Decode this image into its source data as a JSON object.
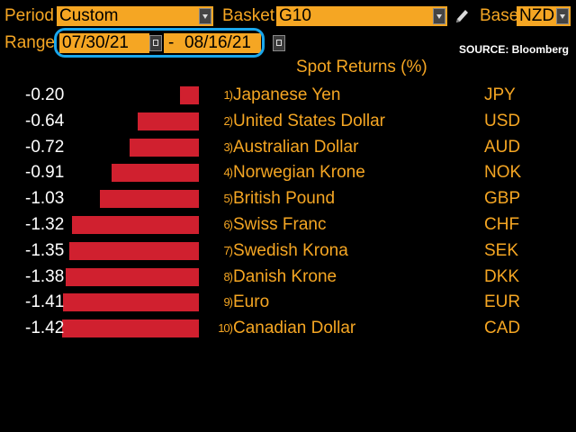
{
  "header": {
    "period_label": "Period",
    "period_value": "Custom",
    "basket_label": "Basket",
    "basket_value": "G10",
    "base_label": "Base",
    "base_value": "NZD",
    "range_label": "Range",
    "range_start": "07/30/21",
    "range_sep": "-",
    "range_end": "08/16/21",
    "source": "SOURCE: Bloomberg"
  },
  "colors": {
    "accent": "#f5a623",
    "bar": "#d0202f",
    "highlight": "#1aa7ec",
    "background": "#000000"
  },
  "chart_data": {
    "type": "bar",
    "orientation": "horizontal",
    "title": "Spot Returns (%)",
    "rows": [
      {
        "rank": "1)",
        "name": "Japanese Yen",
        "code": "JPY",
        "value": -0.2,
        "label": "-0.20"
      },
      {
        "rank": "2)",
        "name": "United States Dollar",
        "code": "USD",
        "value": -0.64,
        "label": "-0.64"
      },
      {
        "rank": "3)",
        "name": "Australian Dollar",
        "code": "AUD",
        "value": -0.72,
        "label": "-0.72"
      },
      {
        "rank": "4)",
        "name": "Norwegian Krone",
        "code": "NOK",
        "value": -0.91,
        "label": "-0.91"
      },
      {
        "rank": "5)",
        "name": "British Pound",
        "code": "GBP",
        "value": -1.03,
        "label": "-1.03"
      },
      {
        "rank": "6)",
        "name": "Swiss Franc",
        "code": "CHF",
        "value": -1.32,
        "label": "-1.32"
      },
      {
        "rank": "7)",
        "name": "Swedish Krona",
        "code": "SEK",
        "value": -1.35,
        "label": "-1.35"
      },
      {
        "rank": "8)",
        "name": "Danish Krone",
        "code": "DKK",
        "value": -1.38,
        "label": "-1.38"
      },
      {
        "rank": "9)",
        "name": "Euro",
        "code": "EUR",
        "value": -1.41,
        "label": "-1.41"
      },
      {
        "rank": "10)",
        "name": "Canadian Dollar",
        "code": "CAD",
        "value": -1.42,
        "label": "-1.42"
      }
    ]
  }
}
